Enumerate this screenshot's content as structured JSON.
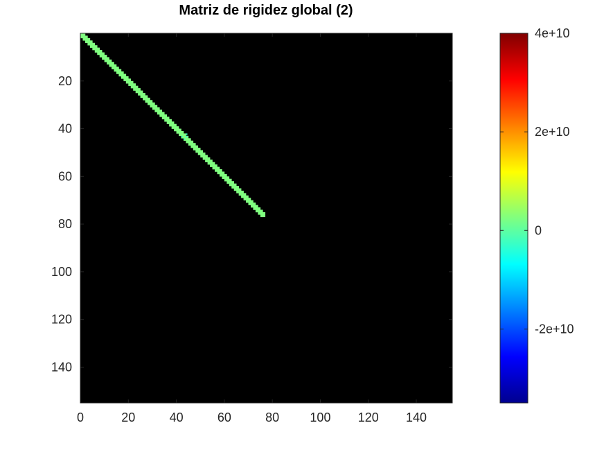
{
  "chart_data": {
    "type": "heatmap",
    "title": "Matriz de rigidez global (2)",
    "xlabel": "",
    "ylabel": "",
    "background_color": "#000000",
    "grid": false,
    "colormap": "jet",
    "matrix_size": 155,
    "xlim": [
      0,
      155
    ],
    "ylim": [
      155,
      0
    ],
    "x_ticks": [
      0,
      20,
      40,
      60,
      80,
      100,
      120,
      140
    ],
    "y_ticks": [
      20,
      40,
      60,
      80,
      100,
      120,
      140
    ],
    "nonzero_band": {
      "start_index": 1,
      "end_index": 77,
      "half_bandwidth": 1,
      "value_approx": 2000000000,
      "color": "#80ff80"
    },
    "coupling_node": {
      "row": 44,
      "col": 44,
      "value_approx": -3000000000
    },
    "colorbar": {
      "min": -35000000000,
      "max": 40000000000,
      "ticks": [
        40000000000,
        20000000000,
        0,
        -20000000000
      ],
      "tick_labels": [
        "4e+10",
        "2e+10",
        "0",
        "-2e+10"
      ],
      "location": "right"
    }
  }
}
